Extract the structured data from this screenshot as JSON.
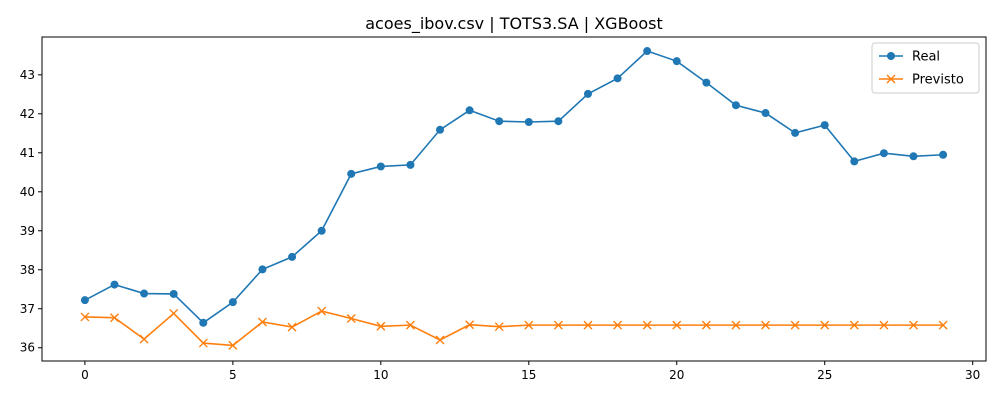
{
  "chart_data": {
    "type": "line",
    "title": "acoes_ibov.csv | TOTS3.SA | XGBoost",
    "xlabel": "",
    "ylabel": "",
    "xlim": [
      -1.45,
      30.45
    ],
    "ylim": [
      35.66,
      43.97
    ],
    "xticks": [
      0,
      5,
      10,
      15,
      20,
      25,
      30
    ],
    "yticks": [
      36,
      37,
      38,
      39,
      40,
      41,
      42,
      43
    ],
    "grid": false,
    "legend_position": "top-right",
    "x": [
      0,
      1,
      2,
      3,
      4,
      5,
      6,
      7,
      8,
      9,
      10,
      11,
      12,
      13,
      14,
      15,
      16,
      17,
      18,
      19,
      20,
      21,
      22,
      23,
      24,
      25,
      26,
      27,
      28,
      29
    ],
    "series": [
      {
        "name": "Real",
        "color": "#1f77b4",
        "marker": "circle",
        "values": [
          37.22,
          37.62,
          37.39,
          37.38,
          36.64,
          37.17,
          38.01,
          38.33,
          39.0,
          40.46,
          40.65,
          40.69,
          41.59,
          42.09,
          41.81,
          41.79,
          41.81,
          42.51,
          42.91,
          43.61,
          43.35,
          42.8,
          42.22,
          42.02,
          41.51,
          41.71,
          40.78,
          40.99,
          40.91,
          40.95
        ]
      },
      {
        "name": "Previsto",
        "color": "#ff7f0e",
        "marker": "x",
        "values": [
          36.79,
          36.77,
          36.22,
          36.88,
          36.12,
          36.06,
          36.66,
          36.53,
          36.94,
          36.75,
          36.55,
          36.58,
          36.2,
          36.59,
          36.54,
          36.58,
          36.58,
          36.58,
          36.58,
          36.58,
          36.58,
          36.58,
          36.58,
          36.58,
          36.58,
          36.58,
          36.58,
          36.58,
          36.58,
          36.58
        ]
      }
    ]
  }
}
